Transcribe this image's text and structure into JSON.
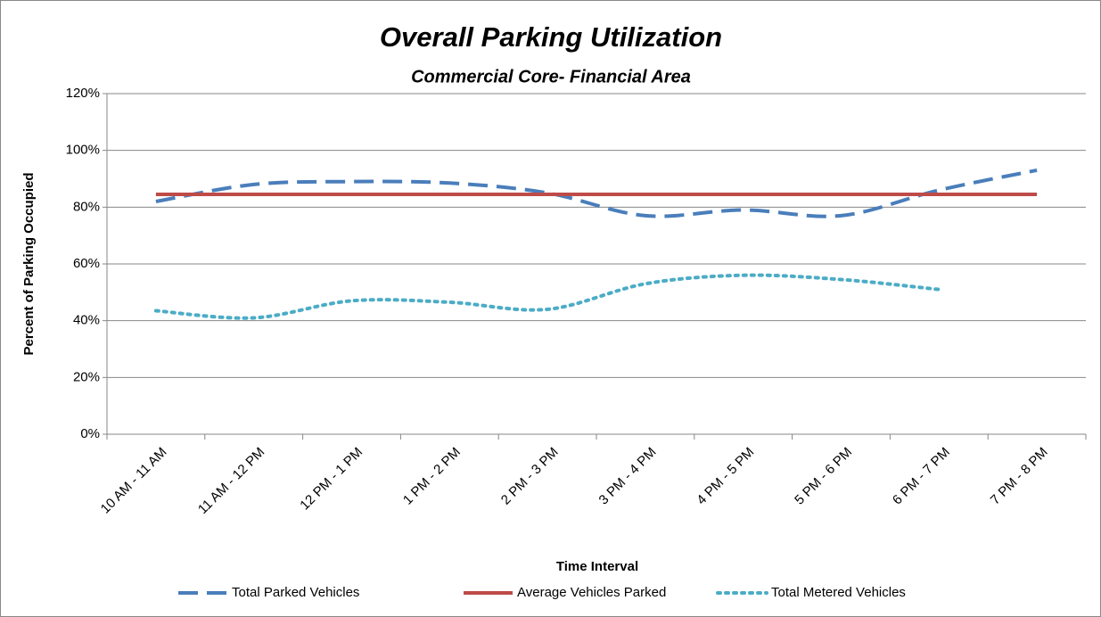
{
  "chart_data": {
    "type": "line",
    "title": "Overall Parking Utilization",
    "subtitle": "Commercial Core- Financial Area",
    "x_label": "Time Interval",
    "y_label": "Percent of Parking Occupied",
    "categories": [
      "10 AM - 11 AM",
      "11 AM - 12 PM",
      "12 PM - 1 PM",
      "1 PM - 2 PM",
      "2 PM - 3 PM",
      "3 PM - 4 PM",
      "4 PM - 5 PM",
      "5 PM - 6 PM",
      "6 PM - 7 PM",
      "7 PM - 8 PM"
    ],
    "series": [
      {
        "name": "Total Parked Vehicles",
        "color": "#4a7ebb",
        "line_style": "dashed",
        "values": [
          82,
          88,
          89,
          88.5,
          85,
          77,
          79,
          77,
          86,
          93
        ]
      },
      {
        "name": "Average Vehicles Parked",
        "color": "#be4b48",
        "line_style": "solid",
        "values": [
          84.5,
          84.5,
          84.5,
          84.5,
          84.5,
          84.5,
          84.5,
          84.5,
          84.5,
          84.5
        ]
      },
      {
        "name": "Total Metered Vehicles",
        "color": "#4bacc6",
        "line_style": "dotted",
        "values": [
          43.5,
          41,
          47,
          46.5,
          44,
          53,
          56,
          54.5,
          51,
          null
        ]
      }
    ],
    "smooth": true,
    "ylim": [
      0,
      120
    ],
    "yticks": [
      {
        "value": 0,
        "label": "0%"
      },
      {
        "value": 20,
        "label": "20%"
      },
      {
        "value": 40,
        "label": "40%"
      },
      {
        "value": 60,
        "label": "60%"
      },
      {
        "value": 80,
        "label": "80%"
      },
      {
        "value": 100,
        "label": "100%"
      },
      {
        "value": 120,
        "label": "120%"
      }
    ],
    "grid": true,
    "legend": "bottom"
  }
}
